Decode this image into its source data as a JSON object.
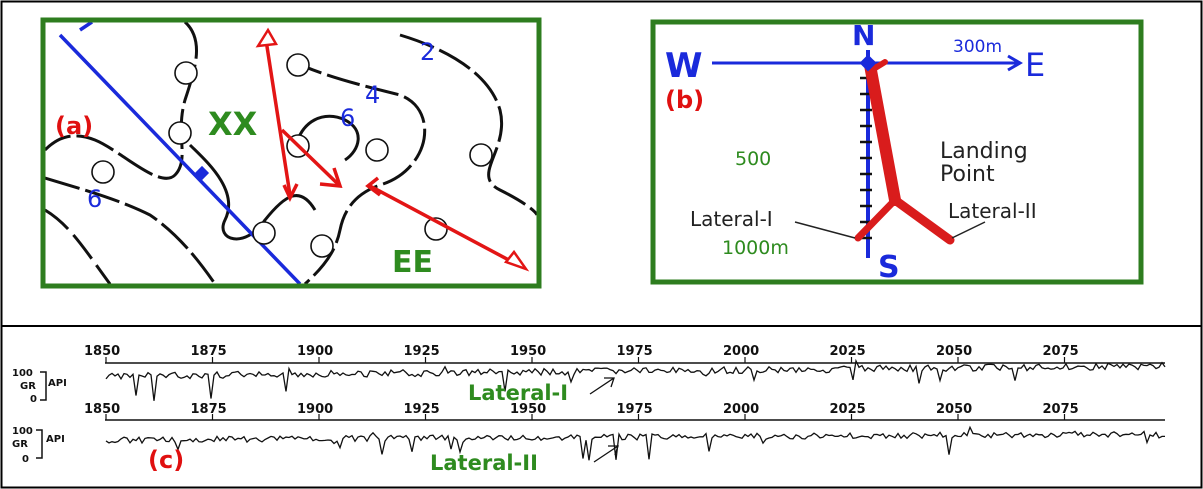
{
  "panel_a": {
    "label": "(a)",
    "well_name": "XX",
    "area_name": "EE",
    "contours": [
      "2",
      "4",
      "6",
      "6"
    ],
    "colors": {
      "frame": "#2e7d1f",
      "fault": "#1a2adb",
      "well_path": "#e31515",
      "label": "#e01010",
      "contour_label": "#1a2adb",
      "text_green": "#2e8b1f"
    }
  },
  "panel_b": {
    "label": "(b)",
    "north": "N",
    "south": "S",
    "west": "W",
    "east": "E",
    "scale_300": "300m",
    "depth_500": "500",
    "depth_1000": "1000m",
    "landing_line1": "Landing",
    "landing_line2": "Point",
    "lateral_1": "Lateral-I",
    "lateral_2": "Lateral-II"
  },
  "panel_c": {
    "label": "(c)",
    "depth_ticks": [
      "1850",
      "1875",
      "1900",
      "1925",
      "1950",
      "1975",
      "2000",
      "2025",
      "2050",
      "2075"
    ],
    "track1": {
      "scale_top": "100",
      "curve": "GR",
      "scale_bottom": "0",
      "unit": "API",
      "name": "Lateral-I"
    },
    "track2": {
      "scale_top": "100",
      "curve": "GR",
      "scale_bottom": "0",
      "unit": "API",
      "name": "Lateral-II"
    }
  }
}
